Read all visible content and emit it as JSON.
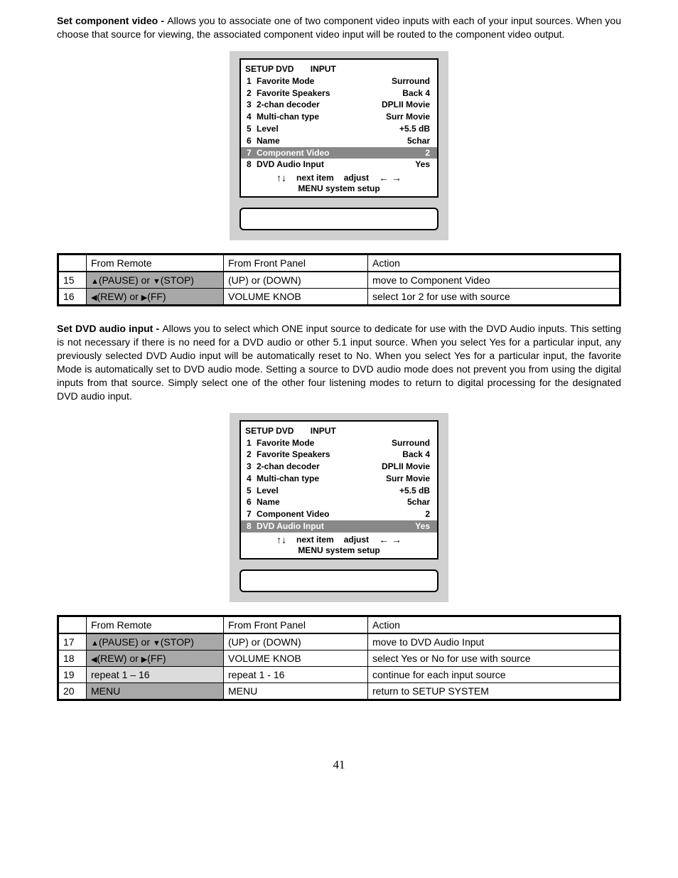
{
  "section1": {
    "title": "Set component video - ",
    "text": "Allows you to associate one of two component video inputs with each of your input sources. When you choose that source for viewing, the associated component video input will be routed to the component video output."
  },
  "lcd1": {
    "title": "SETUP DVD       INPUT",
    "rows": [
      {
        "n": "1",
        "label": "Favorite Mode",
        "val": "Surround",
        "hl": false
      },
      {
        "n": "2",
        "label": "Favorite Speakers",
        "val": "Back 4",
        "hl": false
      },
      {
        "n": "3",
        "label": "2-chan decoder",
        "val": "DPLII Movie",
        "hl": false
      },
      {
        "n": "4",
        "label": "Multi-chan type",
        "val": "Surr Movie",
        "hl": false
      },
      {
        "n": "5",
        "label": "Level",
        "val": "+5.5 dB",
        "hl": false
      },
      {
        "n": "6",
        "label": "Name",
        "val": "5char",
        "hl": false
      },
      {
        "n": "7",
        "label": "Component Video",
        "val": "2",
        "hl": true
      },
      {
        "n": "8",
        "label": "DVD Audio Input",
        "val": "Yes",
        "hl": false
      }
    ],
    "nav_left": "↑↓",
    "nav_mid": "next item",
    "nav_mid2": "adjust",
    "nav_right": "← →",
    "footer": "MENU system setup"
  },
  "table1": {
    "headers": [
      "",
      "From Remote",
      "From Front Panel",
      "Action"
    ],
    "rows": [
      {
        "idx": "15",
        "remote_pre": "▲",
        "remote_mid": "(PAUSE) or ",
        "remote_pre2": "▼",
        "remote_suf": "(STOP)",
        "remote_hl": "g",
        "front": "(UP) or (DOWN)",
        "action": "move to Component Video"
      },
      {
        "idx": "16",
        "remote_pre": "◀",
        "remote_mid": "(REW) or ",
        "remote_pre2": "▶",
        "remote_suf": "(FF)",
        "remote_hl": "g",
        "front": "VOLUME KNOB",
        "action": "select 1or 2 for use with source"
      }
    ]
  },
  "section2": {
    "title": "Set DVD audio input - ",
    "text": "Allows you to select which ONE input source to dedicate for use with the DVD Audio inputs. This setting is not necessary if there is no need for a DVD audio or other 5.1 input source. When you select Yes for a particular input, any previously selected DVD Audio input will be automatically reset to No. When you select Yes for a particular input, the favorite Mode is automatically set to DVD audio mode. Setting a source to DVD audio mode does not prevent you from using the digital inputs from that source. Simply select one of the other four listening modes to return to digital processing for the designated DVD audio input."
  },
  "lcd2": {
    "title": "SETUP DVD       INPUT",
    "rows": [
      {
        "n": "1",
        "label": "Favorite Mode",
        "val": "Surround",
        "hl": false
      },
      {
        "n": "2",
        "label": "Favorite Speakers",
        "val": "Back 4",
        "hl": false
      },
      {
        "n": "3",
        "label": "2-chan decoder",
        "val": "DPLII Movie",
        "hl": false
      },
      {
        "n": "4",
        "label": "Multi-chan type",
        "val": "Surr Movie",
        "hl": false
      },
      {
        "n": "5",
        "label": "Level",
        "val": "+5.5 dB",
        "hl": false
      },
      {
        "n": "6",
        "label": "Name",
        "val": "5char",
        "hl": false
      },
      {
        "n": "7",
        "label": "Component Video",
        "val": "2",
        "hl": false
      },
      {
        "n": "8",
        "label": "DVD Audio Input",
        "val": "Yes",
        "hl": true
      }
    ],
    "nav_left": "↑↓",
    "nav_mid": "next item",
    "nav_mid2": "adjust",
    "nav_right": "← →",
    "footer": "MENU system setup"
  },
  "table2": {
    "headers": [
      "",
      "From Remote",
      "From Front Panel",
      "Action"
    ],
    "rows": [
      {
        "idx": "17",
        "remote_pre": "▲",
        "remote_mid": "(PAUSE) or ",
        "remote_pre2": "▼",
        "remote_suf": "(STOP)",
        "remote_hl": "g",
        "front": "(UP) or (DOWN)",
        "action": "move to DVD Audio Input"
      },
      {
        "idx": "18",
        "remote_pre": "◀",
        "remote_mid": "(REW) or ",
        "remote_pre2": "▶",
        "remote_suf": "(FF)",
        "remote_hl": "g",
        "front": "VOLUME KNOB",
        "action": "select Yes or No for use with source"
      },
      {
        "idx": "19",
        "remote_plain": "repeat 1 – 16",
        "remote_hl": "ly",
        "front": "repeat 1 - 16",
        "action": "continue for each input source"
      },
      {
        "idx": "20",
        "remote_plain": "MENU",
        "remote_hl": "g",
        "front": "MENU",
        "action": "return to SETUP SYSTEM"
      }
    ]
  },
  "pagenum": "41"
}
